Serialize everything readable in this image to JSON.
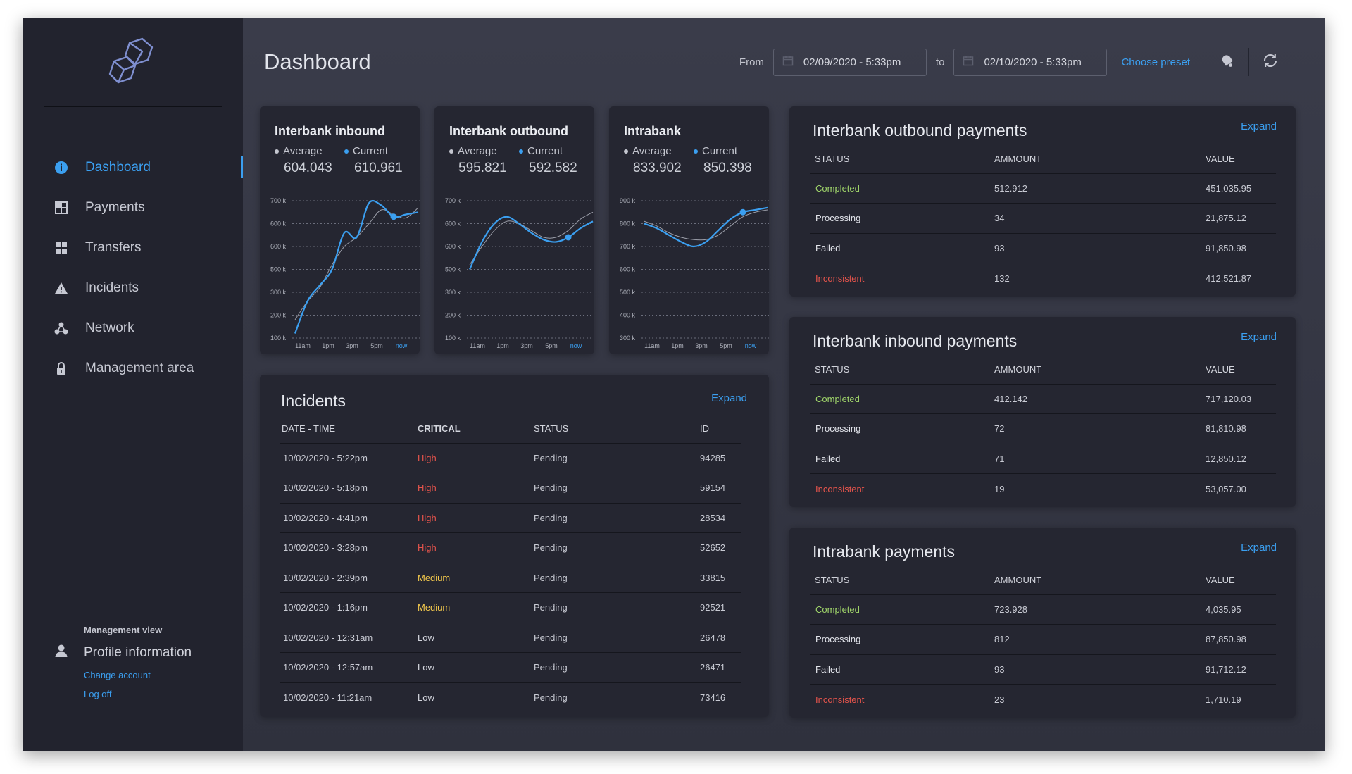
{
  "sidebar": {
    "items": [
      {
        "label": "Dashboard",
        "icon": "info-icon",
        "active": true
      },
      {
        "label": "Payments",
        "icon": "payments-icon",
        "active": false
      },
      {
        "label": "Transfers",
        "icon": "grid-icon",
        "active": false
      },
      {
        "label": "Incidents",
        "icon": "warning-icon",
        "active": false
      },
      {
        "label": "Network",
        "icon": "network-icon",
        "active": false
      },
      {
        "label": "Management area",
        "icon": "lock-icon",
        "active": false
      }
    ],
    "profile": {
      "caption": "Management view",
      "name": "Profile information",
      "change_account": "Change account",
      "log_off": "Log off"
    }
  },
  "header": {
    "title": "Dashboard",
    "from_label": "From",
    "from_value": "02/09/2020 - 5:33pm",
    "to_label": "to",
    "to_value": "02/10/2020 - 5:33pm",
    "preset": "Choose preset"
  },
  "colors": {
    "accent": "#3b9ff0",
    "completed": "#9fd46a",
    "inconsistent": "#e5544c",
    "high": "#e5544c",
    "medium": "#f0c64c",
    "sidebar": "#22232e",
    "card": "#252631"
  },
  "mini_cards": [
    {
      "title": "Interbank inbound",
      "average_label": "Average",
      "average": "604.043",
      "current_label": "Current",
      "current": "610.961"
    },
    {
      "title": "Interbank outbound",
      "average_label": "Average",
      "average": "595.821",
      "current_label": "Current",
      "current": "592.582"
    },
    {
      "title": "Intrabank",
      "average_label": "Average",
      "average": "833.902",
      "current_label": "Current",
      "current": "850.398"
    }
  ],
  "chart_data": [
    {
      "type": "line",
      "title": "Interbank inbound",
      "yticks": [
        "700 k",
        "600 k",
        "600 k",
        "500 k",
        "300 k",
        "200 k",
        "100 k"
      ],
      "xticks": [
        "11am",
        "1pm",
        "3pm",
        "5pm",
        "now"
      ],
      "series": [
        {
          "name": "Current",
          "x": [
            0,
            1,
            2,
            3,
            4,
            5,
            6,
            7,
            8,
            9,
            10
          ],
          "values": [
            120,
            260,
            330,
            400,
            560,
            540,
            690,
            680,
            630,
            640,
            650
          ]
        },
        {
          "name": "Average",
          "x": [
            0,
            1,
            2,
            3,
            4,
            5,
            6,
            7,
            8,
            9,
            10
          ],
          "values": [
            180,
            260,
            320,
            420,
            500,
            540,
            600,
            660,
            640,
            625,
            670
          ]
        }
      ],
      "grid": true
    },
    {
      "type": "line",
      "title": "Interbank outbound",
      "yticks": [
        "700 k",
        "600 k",
        "600 k",
        "500 k",
        "300 k",
        "200 k",
        "100 k"
      ],
      "xticks": [
        "11am",
        "1pm",
        "3pm",
        "5pm",
        "now"
      ],
      "series": [
        {
          "name": "Current",
          "x": [
            0,
            1,
            2,
            3,
            4,
            5,
            6,
            7,
            8,
            9,
            10
          ],
          "values": [
            400,
            520,
            600,
            630,
            600,
            560,
            530,
            520,
            540,
            580,
            610
          ]
        },
        {
          "name": "Average",
          "x": [
            0,
            1,
            2,
            3,
            4,
            5,
            6,
            7,
            8,
            9,
            10
          ],
          "values": [
            420,
            500,
            570,
            610,
            600,
            570,
            540,
            540,
            570,
            620,
            650
          ]
        }
      ],
      "grid": true
    },
    {
      "type": "line",
      "title": "Intrabank",
      "yticks": [
        "900 k",
        "800 k",
        "700 k",
        "600 k",
        "500 k",
        "400 k",
        "300 k"
      ],
      "xticks": [
        "11am",
        "1pm",
        "3pm",
        "5pm",
        "now"
      ],
      "series": [
        {
          "name": "Current",
          "x": [
            0,
            1,
            2,
            3,
            4,
            5,
            6,
            7,
            8,
            9,
            10
          ],
          "values": [
            800,
            780,
            750,
            720,
            700,
            720,
            770,
            820,
            850,
            860,
            870
          ]
        },
        {
          "name": "Average",
          "x": [
            0,
            1,
            2,
            3,
            4,
            5,
            6,
            7,
            8,
            9,
            10
          ],
          "values": [
            810,
            790,
            760,
            740,
            730,
            730,
            750,
            790,
            830,
            850,
            860
          ]
        }
      ],
      "grid": true
    }
  ],
  "incidents": {
    "title": "Incidents",
    "expand": "Expand",
    "columns": [
      "DATE - TIME",
      "CRITICAL",
      "STATUS",
      "ID"
    ],
    "rows": [
      [
        "10/02/2020 - 5:22pm",
        "High",
        "Pending",
        "94285"
      ],
      [
        "10/02/2020 - 5:18pm",
        "High",
        "Pending",
        "59154"
      ],
      [
        "10/02/2020 - 4:41pm",
        "High",
        "Pending",
        "28534"
      ],
      [
        "10/02/2020 - 3:28pm",
        "High",
        "Pending",
        "52652"
      ],
      [
        "10/02/2020 - 2:39pm",
        "Medium",
        "Pending",
        "33815"
      ],
      [
        "10/02/2020 - 1:16pm",
        "Medium",
        "Pending",
        "92521"
      ],
      [
        "10/02/2020 - 12:31am",
        "Low",
        "Pending",
        "26478"
      ],
      [
        "10/02/2020 - 12:57am",
        "Low",
        "Pending",
        "26471"
      ],
      [
        "10/02/2020 - 11:21am",
        "Low",
        "Pending",
        "73416"
      ]
    ]
  },
  "payment_panels": [
    {
      "title": "Interbank outbound payments",
      "expand": "Expand",
      "columns": [
        "STATUS",
        "AMMOUNT",
        "VALUE"
      ],
      "rows": [
        [
          "Completed",
          "512.912",
          "451,035.95"
        ],
        [
          "Processing",
          "34",
          "21,875.12"
        ],
        [
          "Failed",
          "93",
          "91,850.98"
        ],
        [
          "Inconsistent",
          "132",
          "412,521.87"
        ]
      ]
    },
    {
      "title": "Interbank inbound payments",
      "expand": "Expand",
      "columns": [
        "STATUS",
        "AMMOUNT",
        "VALUE"
      ],
      "rows": [
        [
          "Completed",
          "412.142",
          "717,120.03"
        ],
        [
          "Processing",
          "72",
          "81,810.98"
        ],
        [
          "Failed",
          "71",
          "12,850.12"
        ],
        [
          "Inconsistent",
          "19",
          "53,057.00"
        ]
      ]
    },
    {
      "title": "Intrabank payments",
      "expand": "Expand",
      "columns": [
        "STATUS",
        "AMMOUNT",
        "VALUE"
      ],
      "rows": [
        [
          "Completed",
          "723.928",
          "4,035.95"
        ],
        [
          "Processing",
          "812",
          "87,850.98"
        ],
        [
          "Failed",
          "93",
          "91,712.12"
        ],
        [
          "Inconsistent",
          "23",
          "1,710.19"
        ]
      ]
    }
  ]
}
